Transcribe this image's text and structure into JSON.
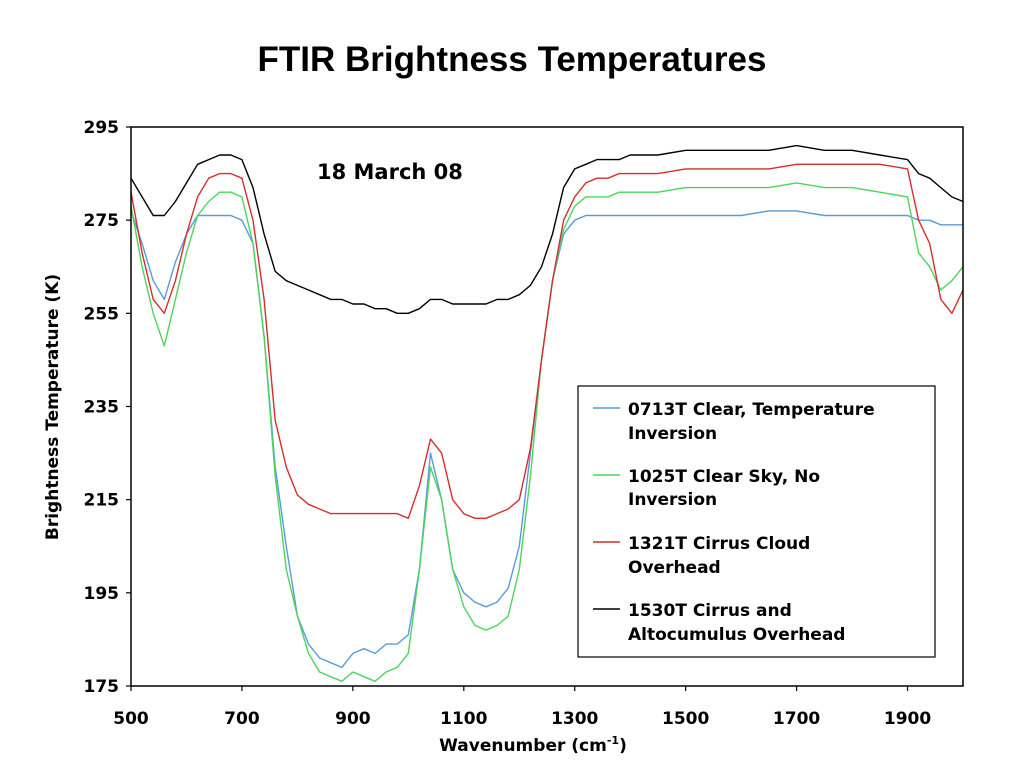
{
  "chart_data": {
    "type": "line",
    "title": "FTIR Brightness Temperatures",
    "annotation": "18 March 08",
    "xlabel": "Wavenumber (cm",
    "xlabel_sup": "-1",
    "xlabel_end": ")",
    "ylabel": "Brightness Temperature (K)",
    "xlim": [
      500,
      2000
    ],
    "ylim": [
      175,
      295
    ],
    "x_ticks": [
      500,
      700,
      900,
      1100,
      1300,
      1500,
      1700,
      1900
    ],
    "y_ticks": [
      175,
      195,
      215,
      235,
      255,
      275,
      295
    ],
    "grid": false,
    "legend_position": "bottom-right",
    "series": [
      {
        "name_line1": "0713T Clear, Temperature",
        "name_line2": "Inversion",
        "color": "#5b9bd5",
        "x": [
          500,
          520,
          540,
          560,
          580,
          600,
          620,
          640,
          660,
          680,
          700,
          720,
          740,
          760,
          780,
          800,
          820,
          840,
          860,
          880,
          900,
          920,
          940,
          960,
          980,
          1000,
          1020,
          1040,
          1060,
          1080,
          1100,
          1120,
          1140,
          1160,
          1180,
          1200,
          1220,
          1240,
          1260,
          1280,
          1300,
          1320,
          1340,
          1360,
          1380,
          1400,
          1450,
          1500,
          1550,
          1600,
          1650,
          1700,
          1750,
          1800,
          1850,
          1900,
          1920,
          1940,
          1960,
          1980,
          2000
        ],
        "y": [
          277,
          270,
          262,
          258,
          266,
          272,
          276,
          276,
          276,
          276,
          275,
          270,
          250,
          222,
          205,
          190,
          184,
          181,
          180,
          179,
          182,
          183,
          182,
          184,
          184,
          186,
          200,
          225,
          215,
          200,
          195,
          193,
          192,
          193,
          196,
          205,
          225,
          245,
          262,
          272,
          275,
          276,
          276,
          276,
          276,
          276,
          276,
          276,
          276,
          276,
          277,
          277,
          276,
          276,
          276,
          276,
          275,
          275,
          274,
          274,
          274
        ]
      },
      {
        "name_line1": "1025T Clear Sky, No",
        "name_line2": "Inversion",
        "color": "#4cd55c",
        "x": [
          500,
          520,
          540,
          560,
          580,
          600,
          620,
          640,
          660,
          680,
          700,
          720,
          740,
          760,
          780,
          800,
          820,
          840,
          860,
          880,
          900,
          920,
          940,
          960,
          980,
          1000,
          1020,
          1040,
          1060,
          1080,
          1100,
          1120,
          1140,
          1160,
          1180,
          1200,
          1220,
          1240,
          1260,
          1280,
          1300,
          1320,
          1340,
          1360,
          1380,
          1400,
          1450,
          1500,
          1550,
          1600,
          1650,
          1700,
          1750,
          1800,
          1850,
          1900,
          1920,
          1940,
          1960,
          1980,
          2000
        ],
        "y": [
          278,
          265,
          255,
          248,
          258,
          268,
          276,
          279,
          281,
          281,
          280,
          270,
          250,
          220,
          200,
          190,
          182,
          178,
          177,
          176,
          178,
          177,
          176,
          178,
          179,
          182,
          200,
          222,
          215,
          200,
          192,
          188,
          187,
          188,
          190,
          200,
          220,
          245,
          262,
          273,
          278,
          280,
          280,
          280,
          281,
          281,
          281,
          282,
          282,
          282,
          282,
          283,
          282,
          282,
          281,
          280,
          268,
          265,
          260,
          262,
          265
        ]
      },
      {
        "name_line1": "1321T Cirrus Cloud",
        "name_line2": "Overhead",
        "color": "#d42f2f",
        "x": [
          500,
          520,
          540,
          560,
          580,
          600,
          620,
          640,
          660,
          680,
          700,
          720,
          740,
          760,
          780,
          800,
          820,
          840,
          860,
          880,
          900,
          920,
          940,
          960,
          980,
          1000,
          1020,
          1040,
          1060,
          1080,
          1100,
          1120,
          1140,
          1160,
          1180,
          1200,
          1220,
          1240,
          1260,
          1280,
          1300,
          1320,
          1340,
          1360,
          1380,
          1400,
          1450,
          1500,
          1550,
          1600,
          1650,
          1700,
          1750,
          1800,
          1850,
          1900,
          1920,
          1940,
          1960,
          1980,
          2000
        ],
        "y": [
          281,
          268,
          258,
          255,
          262,
          272,
          280,
          284,
          285,
          285,
          284,
          275,
          258,
          232,
          222,
          216,
          214,
          213,
          212,
          212,
          212,
          212,
          212,
          212,
          212,
          211,
          218,
          228,
          225,
          215,
          212,
          211,
          211,
          212,
          213,
          215,
          226,
          245,
          262,
          275,
          280,
          283,
          284,
          284,
          285,
          285,
          285,
          286,
          286,
          286,
          286,
          287,
          287,
          287,
          287,
          286,
          275,
          270,
          258,
          255,
          260
        ]
      },
      {
        "name_line1": "1530T Cirrus and",
        "name_line2": "Altocumulus Overhead",
        "color": "#000000",
        "x": [
          500,
          520,
          540,
          560,
          580,
          600,
          620,
          640,
          660,
          680,
          700,
          720,
          740,
          760,
          780,
          800,
          820,
          840,
          860,
          880,
          900,
          920,
          940,
          960,
          980,
          1000,
          1020,
          1040,
          1060,
          1080,
          1100,
          1120,
          1140,
          1160,
          1180,
          1200,
          1220,
          1240,
          1260,
          1280,
          1300,
          1320,
          1340,
          1360,
          1380,
          1400,
          1450,
          1500,
          1550,
          1600,
          1650,
          1700,
          1750,
          1800,
          1850,
          1900,
          1920,
          1940,
          1960,
          1980,
          2000
        ],
        "y": [
          284,
          280,
          276,
          276,
          279,
          283,
          287,
          288,
          289,
          289,
          288,
          282,
          272,
          264,
          262,
          261,
          260,
          259,
          258,
          258,
          257,
          257,
          256,
          256,
          255,
          255,
          256,
          258,
          258,
          257,
          257,
          257,
          257,
          258,
          258,
          259,
          261,
          265,
          272,
          282,
          286,
          287,
          288,
          288,
          288,
          289,
          289,
          290,
          290,
          290,
          290,
          291,
          290,
          290,
          289,
          288,
          285,
          284,
          282,
          280,
          279
        ]
      }
    ]
  }
}
